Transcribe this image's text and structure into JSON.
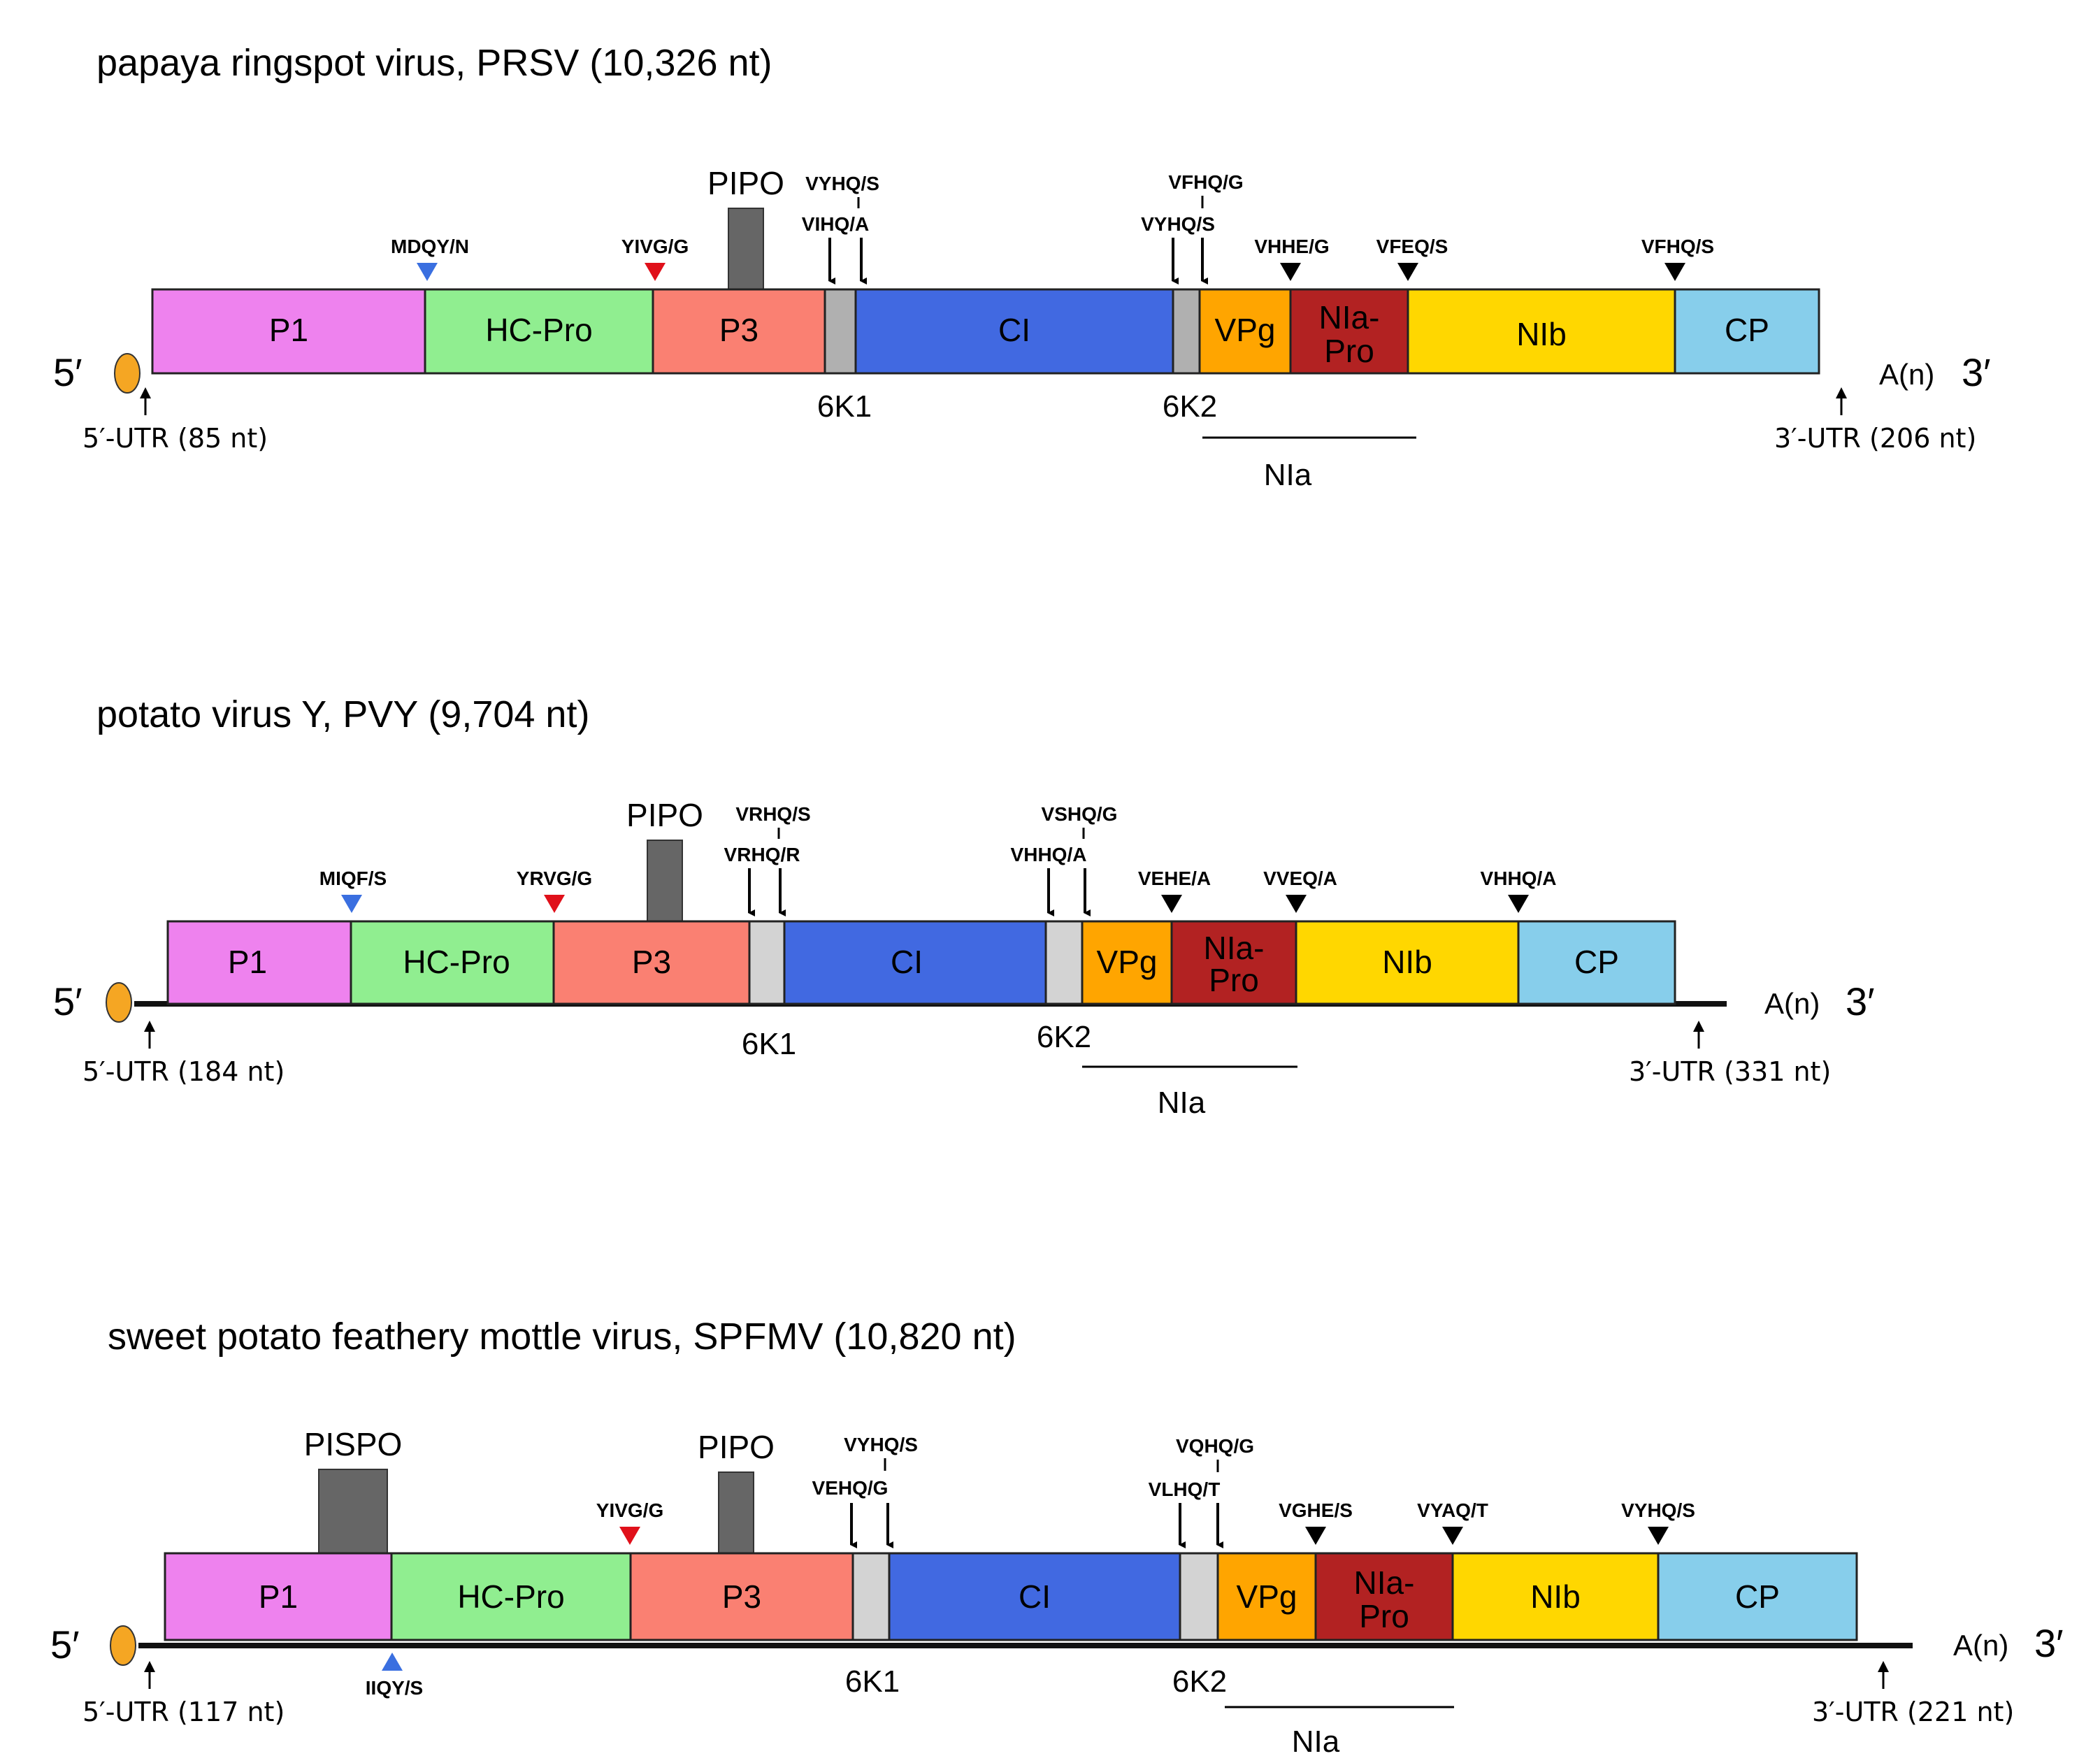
{
  "colors": {
    "P1": "#ee82ee",
    "HC-Pro": "#90ee90",
    "P3": "#fa8072",
    "6K": "#b0b0b0",
    "6K_light": "#d3d3d3",
    "CI": "#4169e1",
    "VPg": "#ffa500",
    "NIa-Pro": "#b22222",
    "NIb": "#ffd700",
    "CP": "#87ceeb",
    "overlap": "#666666",
    "cap": "#f5a623",
    "blue_site": "#3a6fe0",
    "red_site": "#e0101a",
    "black_site": "#000000"
  },
  "viruses": [
    {
      "title": "papaya ringspot virus, PRSV (10,326 nt)",
      "five_prime": "5′",
      "three_prime_an": "A(n)",
      "three_prime": "3′",
      "utr5": "5′-UTR (85 nt)",
      "utr3": "3′-UTR (206 nt)",
      "segments": [
        "P1",
        "HC-Pro",
        "P3",
        "CI",
        "VPg",
        "NIa-",
        "Pro",
        "NIb",
        "CP"
      ],
      "overlap": "PIPO",
      "labels": {
        "k1": "6K1",
        "k2": "6K2",
        "nia": "NIa"
      },
      "sites": {
        "p1": "MDQY/N",
        "hc": "YIVG/G",
        "p3_top": "VYHQ/S",
        "p3": "VIHQ/A",
        "k2_top": "VFHQ/G",
        "ci": "VYHQ/S",
        "vpg": "VHHE/G",
        "pro": "VFEQ/S",
        "nib": "VFHQ/S"
      }
    },
    {
      "title": "potato virus Y, PVY (9,704 nt)",
      "five_prime": "5′",
      "three_prime_an": "A(n)",
      "three_prime": "3′",
      "utr5": "5′-UTR (184 nt)",
      "utr3": "3′-UTR (331 nt)",
      "segments": [
        "P1",
        "HC-Pro",
        "P3",
        "CI",
        "VPg",
        "NIa-",
        "Pro",
        "NIb",
        "CP"
      ],
      "overlap": "PIPO",
      "labels": {
        "k1": "6K1",
        "k2": "6K2",
        "nia": "NIa"
      },
      "sites": {
        "p1": "MIQF/S",
        "hc": "YRVG/G",
        "p3_top": "VRHQ/S",
        "p3": "VRHQ/R",
        "k2_top": "VSHQ/G",
        "ci": "VHHQ/A",
        "vpg": "VEHE/A",
        "pro": "VVEQ/A",
        "nib": "VHHQ/A"
      }
    },
    {
      "title": "sweet potato feathery mottle virus, SPFMV (10,820 nt)",
      "five_prime": "5′",
      "three_prime_an": "A(n)",
      "three_prime": "3′",
      "utr5": "5′-UTR (117 nt)",
      "utr3": "3′-UTR (221 nt)",
      "segments": [
        "P1",
        "HC-Pro",
        "P3",
        "CI",
        "VPg",
        "NIa-",
        "Pro",
        "NIb",
        "CP"
      ],
      "overlap": "PIPO",
      "overlap2": "PISPO",
      "labels": {
        "k1": "6K1",
        "k2": "6K2",
        "nia": "NIa"
      },
      "sites": {
        "p1": "IIQY/S",
        "hc": "YIVG/G",
        "p3_top": "VYHQ/S",
        "p3": "VEHQ/G",
        "k2_top": "VQHQ/G",
        "ci": "VLHQ/T",
        "vpg": "VGHE/S",
        "pro": "VYAQ/T",
        "nib": "VYHQ/S"
      }
    }
  ]
}
